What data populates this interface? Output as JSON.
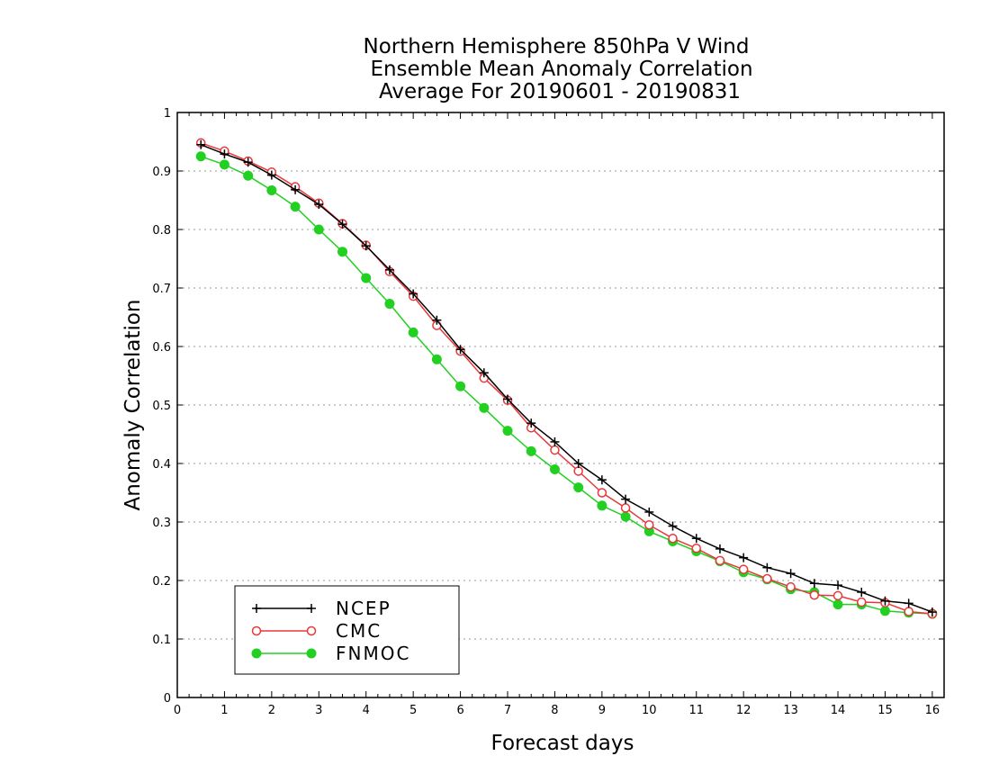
{
  "chart_data": {
    "type": "line",
    "title": [
      "Northern Hemisphere 850hPa V Wind",
      "Ensemble Mean Anomaly Correlation",
      "Average For 20190601 - 20190831"
    ],
    "xlabel": "Forecast days",
    "ylabel": "Anomaly Correlation",
    "xlim": [
      0,
      16.25
    ],
    "ylim": [
      0,
      1
    ],
    "x_ticks": [
      "0",
      "1",
      "2",
      "3",
      "4",
      "5",
      "6",
      "7",
      "8",
      "9",
      "10",
      "11",
      "12",
      "13",
      "14",
      "15",
      "16"
    ],
    "y_ticks": [
      "0",
      "0.1",
      "0.2",
      "0.3",
      "0.4",
      "0.5",
      "0.6",
      "0.7",
      "0.8",
      "0.9",
      "1"
    ],
    "grid": "horizontal-dotted",
    "legend_position": "bottom-left",
    "x": [
      0.5,
      1,
      1.5,
      2,
      2.5,
      3,
      3.5,
      4,
      4.5,
      5,
      5.5,
      6,
      6.5,
      7,
      7.5,
      8,
      8.5,
      9,
      9.5,
      10,
      10.5,
      11,
      11.5,
      12,
      12.5,
      13,
      13.5,
      14,
      14.5,
      15,
      15.5,
      16
    ],
    "series": [
      {
        "name": "NCEP",
        "color": "#000000",
        "marker": "plus",
        "values": [
          0.945,
          0.929,
          0.915,
          0.893,
          0.868,
          0.843,
          0.809,
          0.772,
          0.731,
          0.69,
          0.645,
          0.595,
          0.555,
          0.51,
          0.469,
          0.437,
          0.4,
          0.372,
          0.339,
          0.317,
          0.293,
          0.272,
          0.254,
          0.239,
          0.222,
          0.212,
          0.195,
          0.192,
          0.18,
          0.165,
          0.161,
          0.146
        ]
      },
      {
        "name": "CMC",
        "color": "#e8383b",
        "marker": "open-circle",
        "values": [
          0.948,
          0.934,
          0.917,
          0.898,
          0.873,
          0.845,
          0.81,
          0.773,
          0.728,
          0.686,
          0.636,
          0.592,
          0.546,
          0.508,
          0.461,
          0.423,
          0.387,
          0.35,
          0.324,
          0.295,
          0.272,
          0.255,
          0.234,
          0.219,
          0.203,
          0.189,
          0.175,
          0.174,
          0.163,
          0.162,
          0.147,
          0.143
        ]
      },
      {
        "name": "FNMOC",
        "color": "#22d022",
        "marker": "filled-circle",
        "values": [
          0.925,
          0.911,
          0.892,
          0.867,
          0.839,
          0.8,
          0.762,
          0.717,
          0.673,
          0.624,
          0.578,
          0.532,
          0.495,
          0.456,
          0.421,
          0.39,
          0.359,
          0.328,
          0.309,
          0.284,
          0.267,
          0.25,
          0.233,
          0.214,
          0.202,
          0.185,
          0.18,
          0.159,
          0.159,
          0.148,
          0.145,
          0.143
        ]
      }
    ]
  }
}
